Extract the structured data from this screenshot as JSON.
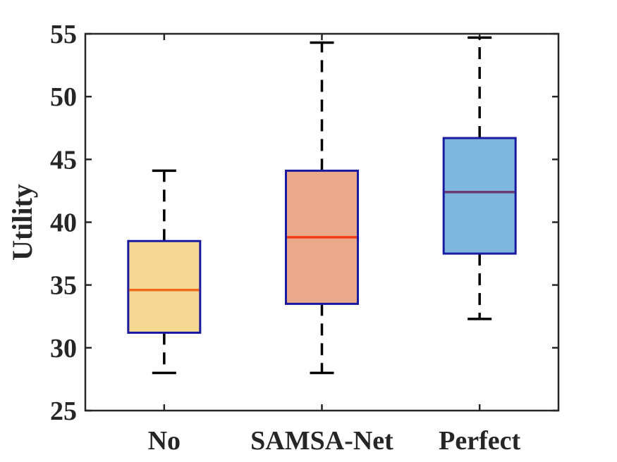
{
  "chart_data": {
    "type": "boxplot",
    "title": "",
    "xlabel": "",
    "ylabel": "Utility",
    "ylim": [
      25,
      55
    ],
    "yticks": [
      25,
      30,
      35,
      40,
      45,
      50,
      55
    ],
    "grid": false,
    "categories": [
      "No",
      "SAMSA-Net",
      "Perfect"
    ],
    "boxes": [
      {
        "category": "No",
        "whisker_low": 28.0,
        "q1": 31.2,
        "median": 34.6,
        "q3": 38.5,
        "whisker_high": 44.1,
        "fill_color": "#f5d993",
        "median_color": "#f26b1d"
      },
      {
        "category": "SAMSA-Net",
        "whisker_low": 28.0,
        "q1": 33.5,
        "median": 38.8,
        "q3": 44.1,
        "whisker_high": 54.3,
        "fill_color": "#eba98c",
        "median_color": "#f23a18"
      },
      {
        "category": "Perfect",
        "whisker_low": 32.3,
        "q1": 37.5,
        "median": 42.4,
        "q3": 46.7,
        "whisker_high": 54.7,
        "fill_color": "#7fb6df",
        "median_color": "#6b3a6e"
      }
    ],
    "colors": {
      "axis": "#262626",
      "box_edge": "#1a1aa0",
      "whisker": "#000000"
    }
  }
}
